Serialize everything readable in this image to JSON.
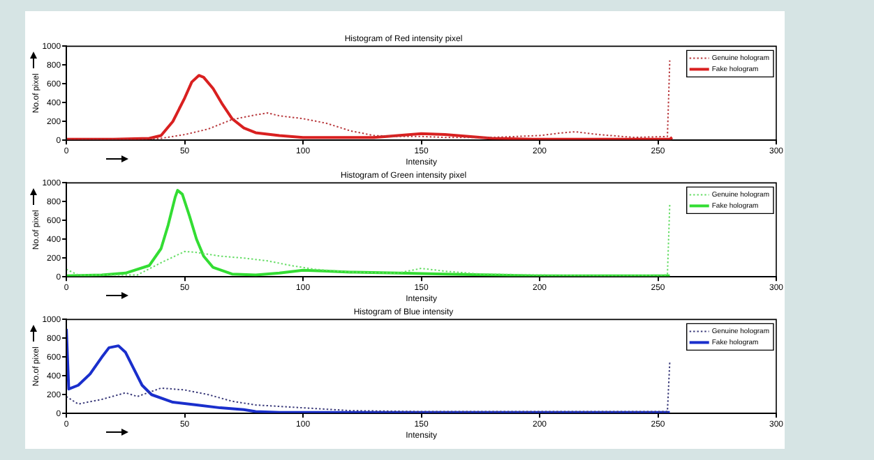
{
  "chart_data": [
    {
      "type": "line",
      "title": "Histogram of Red intensity pixel",
      "xlabel": "Intensity",
      "ylabel": "No.of pixel",
      "xlim": [
        0,
        300
      ],
      "xticks": [
        0,
        50,
        100,
        150,
        200,
        250,
        300
      ],
      "ylim": [
        0,
        1000
      ],
      "yticks": [
        0,
        200,
        400,
        600,
        800,
        1000
      ],
      "grid": false,
      "legend": "top right",
      "marker": "none",
      "series": [
        {
          "name": "Genuine hologram",
          "color": "#b8383c",
          "line_style": "dotted",
          "x": [
            0,
            30,
            40,
            50,
            60,
            70,
            80,
            85,
            90,
            100,
            110,
            120,
            130,
            140,
            150,
            160,
            180,
            190,
            200,
            210,
            215,
            225,
            240,
            254,
            255
          ],
          "values": [
            10,
            10,
            20,
            60,
            120,
            220,
            270,
            290,
            260,
            230,
            180,
            100,
            50,
            40,
            40,
            30,
            30,
            40,
            50,
            80,
            90,
            60,
            30,
            40,
            850
          ]
        },
        {
          "name": "Fake hologram",
          "color": "#d92020",
          "line_style": "solid",
          "x": [
            0,
            20,
            35,
            40,
            45,
            50,
            53,
            56,
            58,
            62,
            66,
            70,
            75,
            80,
            90,
            100,
            110,
            130,
            140,
            150,
            160,
            170,
            180,
            200,
            230,
            255,
            256
          ],
          "values": [
            10,
            10,
            20,
            50,
            200,
            450,
            620,
            690,
            670,
            550,
            380,
            230,
            130,
            80,
            50,
            30,
            30,
            30,
            50,
            70,
            60,
            40,
            20,
            10,
            10,
            10,
            30
          ]
        }
      ]
    },
    {
      "type": "line",
      "title": "Histogram of Green intensity pixel",
      "xlabel": "Intensity",
      "ylabel": "No.of pixel",
      "xlim": [
        0,
        300
      ],
      "xticks": [
        0,
        50,
        100,
        150,
        200,
        250,
        300
      ],
      "ylim": [
        0,
        1000
      ],
      "yticks": [
        0,
        200,
        400,
        600,
        800,
        1000
      ],
      "grid": false,
      "legend": "top right",
      "marker": "none",
      "series": [
        {
          "name": "Genuine hologram",
          "color": "#66dd66",
          "line_style": "dotted",
          "x": [
            0,
            5,
            30,
            40,
            50,
            55,
            65,
            75,
            85,
            95,
            105,
            120,
            140,
            150,
            160,
            175,
            200,
            230,
            254,
            255
          ],
          "values": [
            80,
            20,
            20,
            150,
            270,
            260,
            220,
            200,
            170,
            120,
            80,
            50,
            40,
            90,
            60,
            30,
            20,
            10,
            20,
            780
          ]
        },
        {
          "name": "Fake hologram",
          "color": "#33dd33",
          "line_style": "solid",
          "x": [
            0,
            15,
            25,
            35,
            40,
            43,
            46,
            47,
            49,
            52,
            55,
            58,
            62,
            70,
            80,
            90,
            100,
            110,
            120,
            140,
            160,
            180,
            200,
            230,
            255
          ],
          "values": [
            10,
            20,
            40,
            120,
            300,
            550,
            850,
            920,
            880,
            650,
            400,
            220,
            100,
            30,
            20,
            40,
            70,
            60,
            50,
            40,
            30,
            20,
            10,
            10,
            10
          ]
        }
      ]
    },
    {
      "type": "line",
      "title": "Histogram of Blue intensity",
      "xlabel": "Intensity",
      "ylabel": "No.of pixel",
      "xlim": [
        0,
        300
      ],
      "xticks": [
        0,
        50,
        100,
        150,
        200,
        250,
        300
      ],
      "ylim": [
        0,
        1000
      ],
      "yticks": [
        0,
        200,
        400,
        600,
        800,
        1000
      ],
      "grid": false,
      "legend": "top right",
      "marker": "none",
      "series": [
        {
          "name": "Genuine hologram",
          "color": "#3a3a7a",
          "line_style": "dotted",
          "x": [
            0,
            5,
            15,
            25,
            30,
            40,
            50,
            60,
            70,
            80,
            100,
            120,
            150,
            200,
            254,
            255
          ],
          "values": [
            180,
            100,
            150,
            220,
            180,
            270,
            250,
            200,
            130,
            90,
            60,
            30,
            20,
            20,
            20,
            550
          ]
        },
        {
          "name": "Fake hologram",
          "color": "#1a2fcc",
          "line_style": "solid",
          "x": [
            0,
            1,
            5,
            10,
            15,
            18,
            22,
            25,
            28,
            32,
            36,
            45,
            55,
            65,
            75,
            80,
            90,
            120,
            255
          ],
          "values": [
            900,
            260,
            300,
            420,
            600,
            700,
            720,
            650,
            500,
            300,
            200,
            120,
            90,
            60,
            40,
            20,
            10,
            10,
            10
          ]
        }
      ]
    }
  ]
}
